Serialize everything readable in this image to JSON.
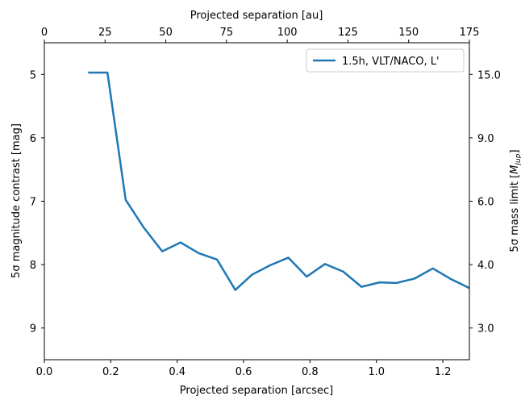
{
  "chart_data": {
    "type": "line",
    "xlabel": "Projected separation [arcsec]",
    "top_xlabel": "Projected separation [au]",
    "ylabel": "5σ magnitude contrast [mag]",
    "right_ylabel": "5σ mass limit [M_Jup]",
    "right_ylabel_main": "5σ mass limit [",
    "right_ylabel_M": "M",
    "right_ylabel_sub": "Jup",
    "right_ylabel_close": "]",
    "xlim": [
      0.0,
      1.28
    ],
    "ylim": [
      9.5,
      4.5
    ],
    "y_inverted": true,
    "top_xlim": [
      0,
      175
    ],
    "x_ticks": [
      0.0,
      0.2,
      0.4,
      0.6,
      0.8,
      1.0,
      1.2
    ],
    "x_tick_labels": [
      "0.0",
      "0.2",
      "0.4",
      "0.6",
      "0.8",
      "1.0",
      "1.2"
    ],
    "y_ticks": [
      5,
      6,
      7,
      8,
      9
    ],
    "y_tick_labels": [
      "5",
      "6",
      "7",
      "8",
      "9"
    ],
    "top_x_ticks": [
      0,
      25,
      50,
      75,
      100,
      125,
      150,
      175
    ],
    "top_x_tick_labels": [
      "0",
      "25",
      "50",
      "75",
      "100",
      "125",
      "150",
      "175"
    ],
    "right_ticks_mag": [
      5.0,
      6.0,
      7.0,
      8.0,
      9.0
    ],
    "right_tick_labels": [
      "15.0",
      "9.0",
      "6.0",
      "4.0",
      "3.0"
    ],
    "legend_position": "top-right",
    "grid": false,
    "series": [
      {
        "name": "1.5h, VLT/NACO, L'",
        "color": "#1f77b4",
        "x": [
          0.135,
          0.19,
          0.245,
          0.3,
          0.355,
          0.41,
          0.465,
          0.52,
          0.575,
          0.625,
          0.68,
          0.735,
          0.79,
          0.845,
          0.9,
          0.955,
          1.01,
          1.06,
          1.115,
          1.17,
          1.225,
          1.28
        ],
        "y": [
          4.97,
          4.97,
          6.98,
          7.42,
          7.79,
          7.65,
          7.82,
          7.92,
          8.4,
          8.16,
          8.01,
          7.89,
          8.19,
          7.99,
          8.11,
          8.35,
          8.28,
          8.29,
          8.22,
          8.06,
          8.23,
          8.37
        ]
      }
    ]
  }
}
